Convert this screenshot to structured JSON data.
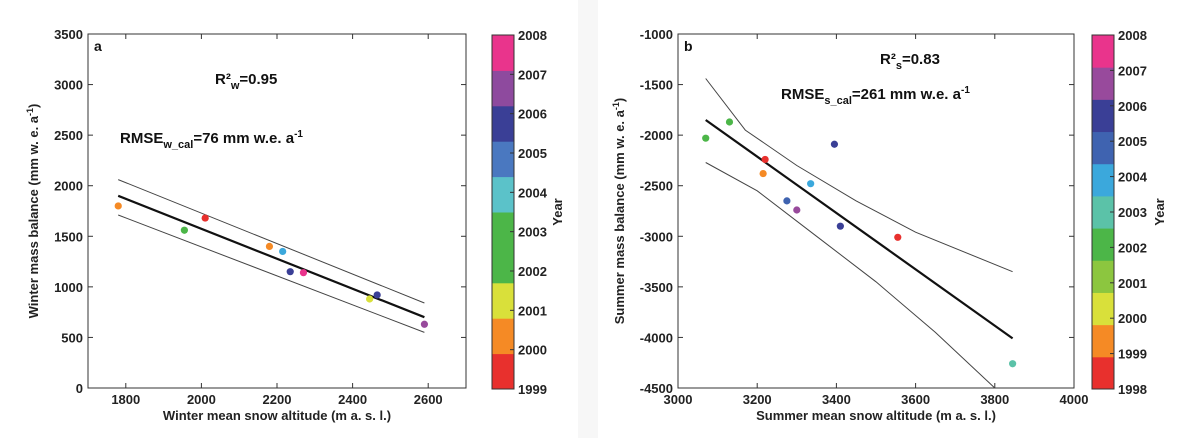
{
  "chart_data": [
    {
      "type": "scatter",
      "panel_label": "a",
      "xlabel": "Winter mean snow altitude (m a. s. l.)",
      "ylabel": "Winter mass balance (mm w. e. a",
      "ylabel_sup": "-1",
      "ylabel_end": ")",
      "xlim": [
        1700,
        2700
      ],
      "ylim": [
        0,
        3500
      ],
      "xticks": [
        1800,
        2000,
        2200,
        2400,
        2600
      ],
      "yticks": [
        0,
        500,
        1000,
        1500,
        2000,
        2500,
        3000,
        3500
      ],
      "annotation_r2": {
        "main": "R²",
        "sub": "w",
        "rest": "=0.95"
      },
      "annotation_rmse": {
        "main": "RMSE",
        "sub": "w_cal",
        "rest": "=76 mm w.e. a",
        "sup": "-1"
      },
      "points": [
        {
          "x": 1780,
          "y": 1800,
          "year": 2000
        },
        {
          "x": 1955,
          "y": 1560,
          "year": 2002
        },
        {
          "x": 2010,
          "y": 1680,
          "year": 1999
        },
        {
          "x": 2180,
          "y": 1400,
          "year": 2000
        },
        {
          "x": 2215,
          "y": 1350,
          "year": 2004
        },
        {
          "x": 2235,
          "y": 1150,
          "year": 2006
        },
        {
          "x": 2270,
          "y": 1140,
          "year": 2008
        },
        {
          "x": 2445,
          "y": 880,
          "year": 2001
        },
        {
          "x": 2465,
          "y": 920,
          "year": 2006
        },
        {
          "x": 2590,
          "y": 630,
          "year": 2007
        }
      ],
      "fit_line": [
        [
          1780,
          1900
        ],
        [
          2590,
          700
        ]
      ],
      "ci_upper": [
        [
          1780,
          2060
        ],
        [
          2590,
          840
        ]
      ],
      "ci_lower": [
        [
          1780,
          1710
        ],
        [
          2590,
          550
        ]
      ],
      "colorbar": {
        "title": "Year",
        "labels": [
          "1999",
          "2000",
          "2001",
          "2002",
          "2003",
          "2004",
          "2005",
          "2006",
          "2007",
          "2008"
        ]
      }
    },
    {
      "type": "scatter",
      "panel_label": "b",
      "xlabel": "Summer mean snow altitude (m a. s. l.)",
      "ylabel": "Summer mass balance (mm w. e. a",
      "ylabel_sup": "-1",
      "ylabel_end": ")",
      "xlim": [
        3000,
        4000
      ],
      "ylim": [
        -4500,
        -1000
      ],
      "xticks": [
        3000,
        3200,
        3400,
        3600,
        3800,
        4000
      ],
      "yticks": [
        -4500,
        -4000,
        -3500,
        -3000,
        -2500,
        -2000,
        -1500,
        -1000
      ],
      "annotation_r2": {
        "main": "R²",
        "sub": "s",
        "rest": "=0.83"
      },
      "annotation_rmse": {
        "main": "RMSE",
        "sub": "s_cal",
        "rest": "=261 mm w.e. a",
        "sup": "-1"
      },
      "points": [
        {
          "x": 3070,
          "y": -2030,
          "year": 2002
        },
        {
          "x": 3130,
          "y": -1870,
          "year": 2002
        },
        {
          "x": 3215,
          "y": -2380,
          "year": 2000
        },
        {
          "x": 3220,
          "y": -2240,
          "year": 1999
        },
        {
          "x": 3275,
          "y": -2650,
          "year": 2005
        },
        {
          "x": 3300,
          "y": -2740,
          "year": 2007
        },
        {
          "x": 3335,
          "y": -2480,
          "year": 2004
        },
        {
          "x": 3395,
          "y": -2090,
          "year": 2006
        },
        {
          "x": 3410,
          "y": -2900,
          "year": 2006
        },
        {
          "x": 3555,
          "y": -3010,
          "year": 1998
        },
        {
          "x": 3845,
          "y": -4260,
          "year": 2003
        }
      ],
      "fit_line": [
        [
          3070,
          -1850
        ],
        [
          3845,
          -4010
        ]
      ],
      "ci_upper": [
        [
          3070,
          -1440
        ],
        [
          3170,
          -1950
        ],
        [
          3300,
          -2300
        ],
        [
          3450,
          -2650
        ],
        [
          3600,
          -2960
        ],
        [
          3845,
          -3350
        ]
      ],
      "ci_lower": [
        [
          3070,
          -2270
        ],
        [
          3200,
          -2550
        ],
        [
          3350,
          -3000
        ],
        [
          3500,
          -3450
        ],
        [
          3650,
          -3950
        ],
        [
          3800,
          -4500
        ]
      ],
      "colorbar": {
        "title": "Year",
        "labels": [
          "1998",
          "1999",
          "2000",
          "2001",
          "2002",
          "2003",
          "2004",
          "2005",
          "2006",
          "2007",
          "2008"
        ]
      }
    }
  ],
  "year_colors": {
    "1998": "#e8302d",
    "1999": "#e8302d",
    "2000": "#f58a25",
    "2001": "#d9e03a",
    "2002": "#4cb648",
    "2003": "#5bc2a8",
    "2004": "#3ba8dc",
    "2005": "#3f63b0",
    "2006": "#3a3f96",
    "2007": "#984a9c",
    "2008": "#e9348c"
  },
  "colorbar_colors_a": [
    "#e8302d",
    "#f58a25",
    "#d9e03a",
    "#4cb648",
    "#4cb648",
    "#5bc2c9",
    "#4a78c0",
    "#3a3f96",
    "#8e4a9e",
    "#e9348c"
  ],
  "colorbar_colors_b": [
    "#e8302d",
    "#f58a25",
    "#d9e03a",
    "#8cc63f",
    "#4cb648",
    "#5bc2a8",
    "#3ba8dc",
    "#3f63b0",
    "#3a3f96",
    "#984a9c",
    "#e9348c"
  ]
}
